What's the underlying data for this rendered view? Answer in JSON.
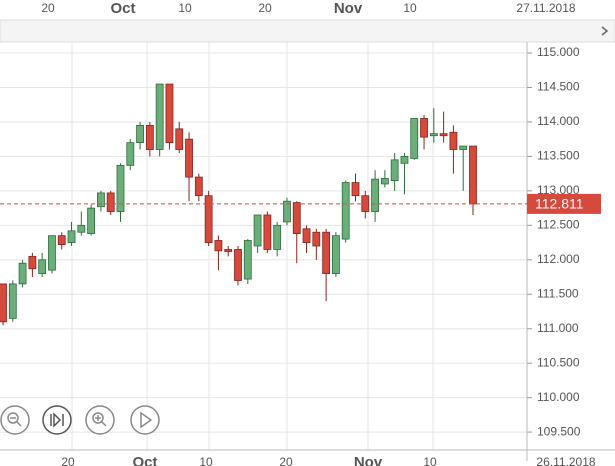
{
  "chart_data": {
    "type": "candlestick",
    "top_labels": [
      "20",
      "Oct",
      "10",
      "20",
      "Nov",
      "10",
      "27.11.2018"
    ],
    "bottom_labels": [
      "20",
      "Oct",
      "10",
      "20",
      "Nov",
      "10",
      "26.11.2018"
    ],
    "open": [
      111.65,
      111.15,
      111.65,
      112.05,
      111.8,
      111.85,
      112.35,
      112.25,
      112.4,
      112.38,
      112.77,
      112.97,
      112.7,
      113.37,
      113.7,
      113.95,
      113.6,
      114.55,
      113.9,
      113.75,
      113.2,
      112.93,
      112.28,
      112.15,
      112.15,
      111.72,
      112.2,
      112.65,
      112.15,
      112.55,
      112.83,
      112.45,
      112.4,
      112.4,
      111.8,
      112.3,
      113.12,
      112.93,
      112.7,
      113.1,
      113.15,
      113.4,
      113.47,
      114.05,
      113.8,
      113.83,
      113.85,
      113.6,
      113.65
    ],
    "high": [
      111.65,
      111.7,
      112.0,
      112.1,
      112.1,
      112.35,
      112.4,
      112.55,
      112.7,
      112.8,
      113.0,
      113.0,
      113.4,
      113.75,
      114.0,
      114.0,
      114.55,
      114.55,
      114.0,
      113.85,
      113.25,
      113.0,
      112.35,
      112.2,
      112.2,
      112.3,
      112.65,
      112.7,
      112.55,
      112.9,
      112.85,
      112.5,
      112.45,
      112.45,
      112.4,
      113.15,
      113.25,
      113.0,
      113.3,
      113.3,
      113.55,
      113.55,
      114.05,
      114.1,
      114.2,
      114.15,
      113.95,
      113.65,
      113.65
    ],
    "low": [
      111.05,
      111.1,
      111.6,
      111.75,
      111.75,
      111.8,
      112.15,
      112.2,
      112.35,
      112.35,
      112.7,
      112.65,
      112.55,
      113.3,
      113.6,
      113.5,
      113.5,
      113.6,
      113.55,
      112.85,
      112.85,
      112.2,
      111.85,
      112.05,
      111.63,
      111.65,
      112.1,
      112.1,
      112.05,
      112.5,
      111.95,
      112.1,
      112.0,
      111.4,
      111.75,
      112.25,
      112.85,
      112.6,
      112.55,
      113.05,
      113.0,
      112.95,
      113.45,
      113.6,
      113.7,
      113.7,
      113.25,
      113.0,
      112.65
    ],
    "close": [
      111.1,
      111.65,
      111.95,
      111.87,
      112.0,
      112.35,
      112.22,
      112.42,
      112.5,
      112.75,
      112.97,
      112.7,
      113.37,
      113.7,
      113.95,
      113.6,
      114.55,
      113.7,
      113.6,
      113.2,
      112.93,
      112.25,
      112.13,
      112.12,
      111.7,
      112.28,
      112.65,
      112.15,
      112.5,
      112.85,
      112.38,
      112.25,
      112.2,
      111.8,
      112.35,
      113.12,
      112.93,
      112.7,
      113.17,
      113.18,
      113.45,
      113.5,
      114.05,
      113.78,
      113.83,
      113.8,
      113.6,
      113.65,
      112.81
    ],
    "up_color": "#6aaf7a",
    "down_color": "#d6493d",
    "last_price": 112.811,
    "ylim": [
      109.24,
      115.16
    ],
    "yticks": [
      {
        "value": 109.5,
        "label": "109.500"
      },
      {
        "value": 110,
        "label": "110.000"
      },
      {
        "value": 110.5,
        "label": "110.500"
      },
      {
        "value": 111,
        "label": "111.000"
      },
      {
        "value": 111.5,
        "label": "111.500"
      },
      {
        "value": 112,
        "label": "112.000"
      },
      {
        "value": 112.5,
        "label": "112.500"
      },
      {
        "value": 113,
        "label": "113.000"
      },
      {
        "value": 113.5,
        "label": "113.500"
      },
      {
        "value": 114,
        "label": "114.000"
      },
      {
        "value": 114.5,
        "label": "114.500"
      },
      {
        "value": 115,
        "label": "115.000"
      }
    ],
    "grid": true
  }
}
